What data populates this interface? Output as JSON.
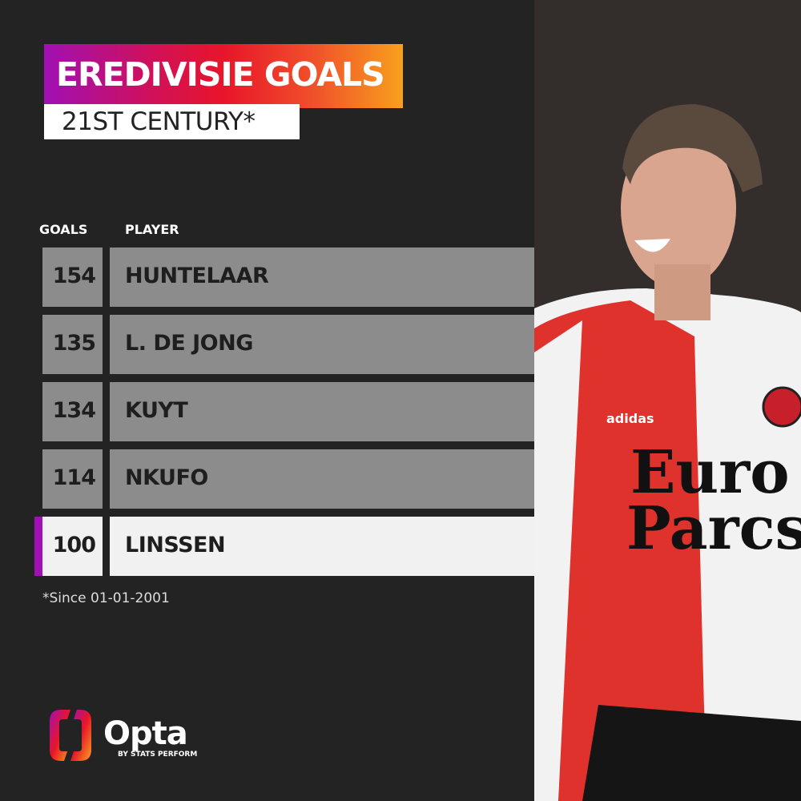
{
  "title": "EREDIVISIE GOALS",
  "subtitle": "21ST CENTURY*",
  "chart_data": {
    "type": "table",
    "columns": [
      "GOALS",
      "PLAYER"
    ],
    "rows": [
      {
        "goals": "154",
        "player": "HUNTELAAR"
      },
      {
        "goals": "135",
        "player": "L. DE JONG"
      },
      {
        "goals": "134",
        "player": "KUYT"
      },
      {
        "goals": "114",
        "player": "NKUFO"
      },
      {
        "goals": "100",
        "player": "LINSSEN",
        "highlighted": true
      }
    ]
  },
  "footnote": "*Since 01-01-2001",
  "brand": {
    "name": "Opta",
    "tagline": "BY STATS PERFORM"
  },
  "colors": {
    "background": "#232323",
    "row": "#8c8c8c",
    "highlight_row": "#f1f1f1",
    "highlight_accent": "#a010b4",
    "gradient_start": "#a010b4",
    "gradient_end": "#f8a01e"
  },
  "photo": {
    "shirt_sponsor": "Euro Parcs",
    "kit_brand": "adidas"
  }
}
